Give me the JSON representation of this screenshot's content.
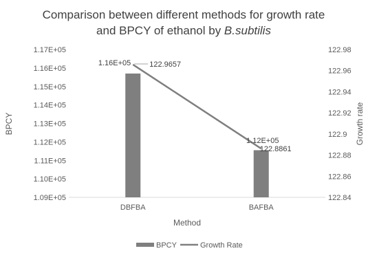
{
  "chart_data": {
    "type": "bar",
    "title_line1": "Comparison between different methods for growth rate",
    "title_line2_prefix": "and BPCY of ethanol by ",
    "title_line2_italic": "B.subtilis",
    "xlabel": "Method",
    "ylabel": "BPCY",
    "y2label": "Growth rate",
    "categories": [
      "DBFBA",
      "BAFBA"
    ],
    "ylim": [
      109000,
      117000
    ],
    "y_ticks": [
      109000,
      110000,
      111000,
      112000,
      113000,
      114000,
      115000,
      116000,
      117000
    ],
    "y_tick_labels": [
      "1.09E+05",
      "1.10E+05",
      "1.11E+05",
      "1.12E+05",
      "1.13E+05",
      "1.14E+05",
      "1.15E+05",
      "1.16E+05",
      "1.17E+05"
    ],
    "y2lim": [
      122.84,
      122.98
    ],
    "y2_ticks": [
      122.84,
      122.86,
      122.88,
      122.9,
      122.92,
      122.94,
      122.96,
      122.98
    ],
    "y2_tick_labels": [
      "122.84",
      "122.86",
      "122.88",
      "122.9",
      "122.92",
      "122.94",
      "122.96",
      "122.98"
    ],
    "series": [
      {
        "name": "BPCY",
        "kind": "bar",
        "axis": "left",
        "color": "#7f7f7f",
        "values": [
          115700,
          111550
        ],
        "data_labels": [
          "1.16E+05",
          "1.12E+05"
        ]
      },
      {
        "name": "Growth Rate",
        "kind": "line",
        "axis": "right",
        "color": "#7f7f7f",
        "values": [
          122.9657,
          122.8861
        ],
        "data_labels": [
          "122.9657",
          "122.8861"
        ]
      }
    ],
    "grid": false,
    "legend_position": "bottom"
  }
}
